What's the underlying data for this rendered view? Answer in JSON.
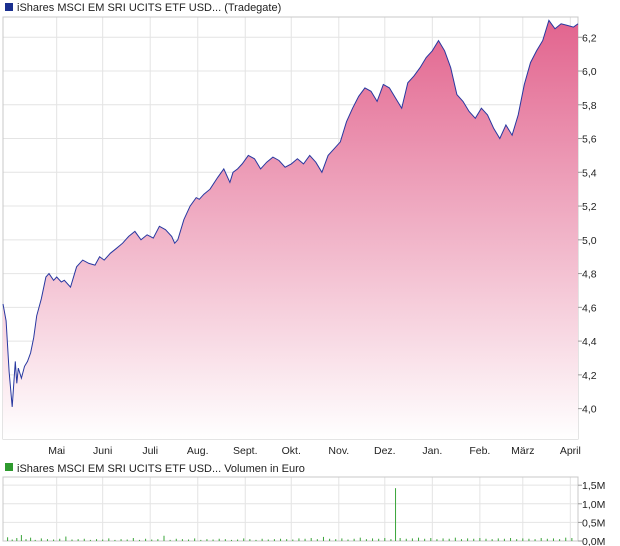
{
  "chart_data": [
    {
      "type": "area",
      "title": "iShares MSCI EM SRI UCITS ETF USD... (Tradegate)",
      "legend_color": "#1a2f8f",
      "line_color": "#2838a0",
      "fill_top_color": "#e2648e",
      "fill_bottom_color": "#ffffff",
      "x_tick_labels": [
        "Mai",
        "Juni",
        "Juli",
        "Aug.",
        "Sept.",
        "Okt.",
        "Nov.",
        "Dez.",
        "Jan.",
        "Feb.",
        "März",
        "April"
      ],
      "y_tick_labels": [
        "4,0",
        "4,2",
        "4,4",
        "4,6",
        "4,8",
        "5,0",
        "5,2",
        "5,4",
        "5,6",
        "5,8",
        "6,0",
        "6,2"
      ],
      "y_ticks": [
        4.0,
        4.2,
        4.4,
        4.6,
        4.8,
        5.0,
        5.2,
        5.4,
        5.6,
        5.8,
        6.0,
        6.2
      ],
      "ylim": [
        3.82,
        6.32
      ],
      "x_range_days": [
        0,
        375
      ],
      "month_day_positions": [
        35,
        65,
        96,
        127,
        158,
        188,
        219,
        249,
        280,
        311,
        339,
        370
      ],
      "y_axis_position": "right",
      "grid": true,
      "series": [
        {
          "x": [
            0,
            2,
            4,
            6,
            8,
            9,
            10,
            12,
            14,
            16,
            18,
            20,
            22,
            25,
            28,
            30,
            33,
            35,
            38,
            40,
            44,
            48,
            52,
            56,
            60,
            63,
            66,
            70,
            74,
            78,
            82,
            86,
            90,
            94,
            98,
            102,
            106,
            110,
            112,
            114,
            118,
            122,
            126,
            128,
            131,
            135,
            140,
            144,
            148,
            150,
            153,
            156,
            160,
            164,
            168,
            172,
            176,
            180,
            184,
            188,
            192,
            196,
            200,
            204,
            208,
            212,
            216,
            220,
            224,
            228,
            232,
            236,
            240,
            244,
            248,
            252,
            256,
            260,
            264,
            268,
            272,
            276,
            280,
            284,
            288,
            292,
            296,
            300,
            304,
            308,
            312,
            316,
            320,
            324,
            328,
            332,
            336,
            340,
            344,
            348,
            352,
            356,
            360,
            364,
            368,
            372,
            375
          ],
          "values": [
            4.62,
            4.52,
            4.22,
            4.01,
            4.28,
            4.15,
            4.24,
            4.18,
            4.25,
            4.28,
            4.33,
            4.42,
            4.55,
            4.65,
            4.78,
            4.8,
            4.76,
            4.78,
            4.75,
            4.76,
            4.72,
            4.84,
            4.88,
            4.86,
            4.85,
            4.9,
            4.88,
            4.92,
            4.95,
            4.98,
            5.02,
            5.05,
            5.0,
            5.03,
            5.01,
            5.08,
            5.06,
            5.02,
            4.98,
            5.0,
            5.12,
            5.2,
            5.25,
            5.24,
            5.27,
            5.3,
            5.37,
            5.42,
            5.34,
            5.4,
            5.42,
            5.45,
            5.5,
            5.48,
            5.42,
            5.46,
            5.49,
            5.47,
            5.43,
            5.45,
            5.48,
            5.45,
            5.5,
            5.46,
            5.4,
            5.5,
            5.54,
            5.58,
            5.7,
            5.78,
            5.85,
            5.9,
            5.88,
            5.82,
            5.92,
            5.9,
            5.84,
            5.78,
            5.93,
            5.97,
            6.02,
            6.08,
            6.12,
            6.18,
            6.12,
            6.02,
            5.86,
            5.82,
            5.76,
            5.72,
            5.78,
            5.74,
            5.66,
            5.6,
            5.68,
            5.62,
            5.74,
            5.92,
            6.05,
            6.12,
            6.18,
            6.3,
            6.25,
            6.28,
            6.27,
            6.26,
            6.28
          ]
        }
      ]
    },
    {
      "type": "bar",
      "title": "iShares MSCI EM SRI UCITS ETF USD... Volumen in Euro",
      "legend_color": "#2e9a2e",
      "bar_color": "#3aa53a",
      "x_tick_labels": [
        "Mai",
        "Juni",
        "Juli",
        "Aug.",
        "Sept.",
        "Okt.",
        "Nov.",
        "Dez.",
        "Jan.",
        "Feb.",
        "März",
        "April"
      ],
      "y_tick_labels": [
        "0,0M",
        "0,5M",
        "1,0M",
        "1,5M"
      ],
      "y_ticks": [
        0.0,
        0.5,
        1.0,
        1.5
      ],
      "ylim": [
        0.0,
        1.72
      ],
      "unit": "M",
      "y_axis_position": "right",
      "grid": true,
      "series": [
        {
          "x": [
            3,
            6,
            9,
            12,
            15,
            18,
            21,
            25,
            29,
            33,
            37,
            41,
            45,
            49,
            53,
            57,
            61,
            65,
            69,
            73,
            77,
            81,
            85,
            89,
            93,
            97,
            101,
            105,
            109,
            113,
            117,
            121,
            125,
            129,
            133,
            137,
            141,
            145,
            149,
            153,
            157,
            161,
            165,
            169,
            173,
            177,
            181,
            185,
            189,
            193,
            197,
            201,
            205,
            209,
            213,
            217,
            221,
            225,
            229,
            233,
            237,
            241,
            245,
            249,
            253,
            256,
            259,
            263,
            267,
            271,
            275,
            279,
            283,
            287,
            291,
            295,
            299,
            303,
            307,
            311,
            315,
            319,
            323,
            327,
            331,
            335,
            339,
            343,
            347,
            351,
            355,
            359,
            363,
            367,
            371
          ],
          "values": [
            0.1,
            0.04,
            0.08,
            0.16,
            0.05,
            0.09,
            0.03,
            0.07,
            0.05,
            0.04,
            0.06,
            0.12,
            0.04,
            0.05,
            0.06,
            0.03,
            0.05,
            0.04,
            0.07,
            0.03,
            0.05,
            0.04,
            0.08,
            0.03,
            0.06,
            0.04,
            0.05,
            0.14,
            0.03,
            0.06,
            0.05,
            0.04,
            0.07,
            0.03,
            0.05,
            0.04,
            0.06,
            0.05,
            0.03,
            0.04,
            0.07,
            0.05,
            0.03,
            0.06,
            0.04,
            0.05,
            0.06,
            0.05,
            0.04,
            0.07,
            0.06,
            0.08,
            0.05,
            0.11,
            0.06,
            0.05,
            0.07,
            0.04,
            0.06,
            0.09,
            0.05,
            0.07,
            0.06,
            0.08,
            0.05,
            1.42,
            0.08,
            0.06,
            0.07,
            0.09,
            0.06,
            0.08,
            0.05,
            0.07,
            0.06,
            0.09,
            0.05,
            0.07,
            0.06,
            0.08,
            0.06,
            0.05,
            0.07,
            0.06,
            0.08,
            0.05,
            0.07,
            0.06,
            0.05,
            0.08,
            0.06,
            0.07,
            0.05,
            0.09,
            0.08
          ]
        }
      ]
    }
  ]
}
